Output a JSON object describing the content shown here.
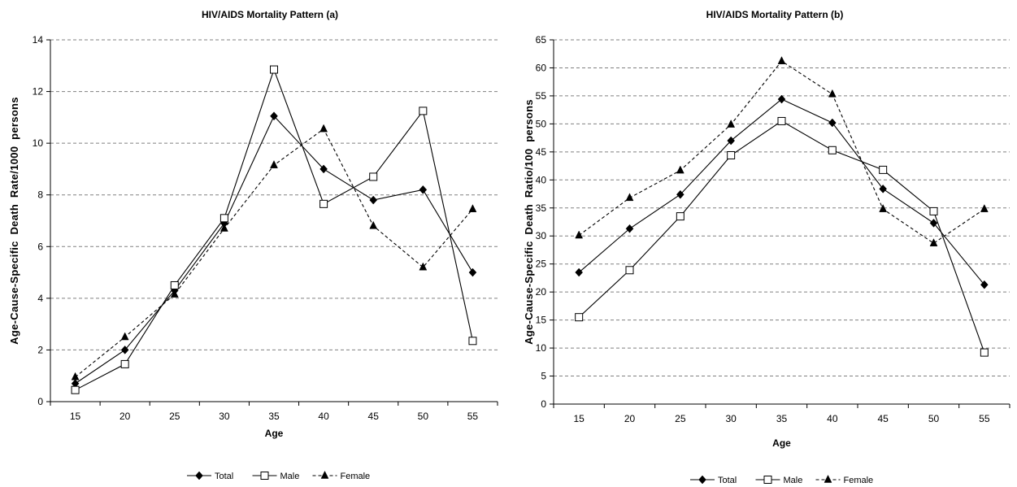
{
  "chart_data": [
    {
      "type": "line",
      "title": "HIV/AIDS Mortality Pattern (a)",
      "xlabel": "Age",
      "ylabel": "Age-Cause-Specific  Death  Rate/1000  persons",
      "x": [
        15,
        20,
        25,
        30,
        35,
        40,
        45,
        50,
        55
      ],
      "ylim": [
        0,
        14
      ],
      "ytick_step": 2,
      "grid": "horizontal-dashed",
      "legend_position": "bottom-center",
      "series": [
        {
          "name": "Total",
          "marker": "diamond",
          "dash": "solid",
          "values": [
            0.7,
            2.0,
            4.3,
            6.9,
            11.05,
            9.0,
            7.8,
            8.2,
            5.0
          ]
        },
        {
          "name": "Male",
          "marker": "square-open",
          "dash": "solid",
          "values": [
            0.45,
            1.45,
            4.5,
            7.1,
            12.85,
            7.65,
            8.7,
            11.25,
            2.35
          ]
        },
        {
          "name": "Female",
          "marker": "triangle",
          "dash": "dashed",
          "values": [
            0.95,
            2.5,
            4.15,
            6.7,
            9.15,
            10.55,
            6.8,
            5.2,
            7.45
          ]
        }
      ]
    },
    {
      "type": "line",
      "title": "HIV/AIDS Mortality Pattern (b)",
      "xlabel": "Age",
      "ylabel": "Age-Cause-Specific  Death  Ratio/100  persons",
      "x": [
        15,
        20,
        25,
        30,
        35,
        40,
        45,
        50,
        55
      ],
      "ylim": [
        0,
        65
      ],
      "ytick_step": 5,
      "grid": "horizontal-dashed",
      "legend_position": "bottom-center",
      "series": [
        {
          "name": "Total",
          "marker": "diamond",
          "dash": "solid",
          "values": [
            23.5,
            31.3,
            37.4,
            47.0,
            54.4,
            50.2,
            38.4,
            32.3,
            21.3
          ]
        },
        {
          "name": "Male",
          "marker": "square-open",
          "dash": "solid",
          "values": [
            15.5,
            23.9,
            33.5,
            44.4,
            50.5,
            45.3,
            41.8,
            34.4,
            9.2
          ]
        },
        {
          "name": "Female",
          "marker": "triangle",
          "dash": "dashed",
          "values": [
            30.1,
            36.8,
            41.7,
            49.9,
            61.2,
            55.3,
            34.8,
            28.7,
            34.8
          ]
        }
      ]
    }
  ]
}
